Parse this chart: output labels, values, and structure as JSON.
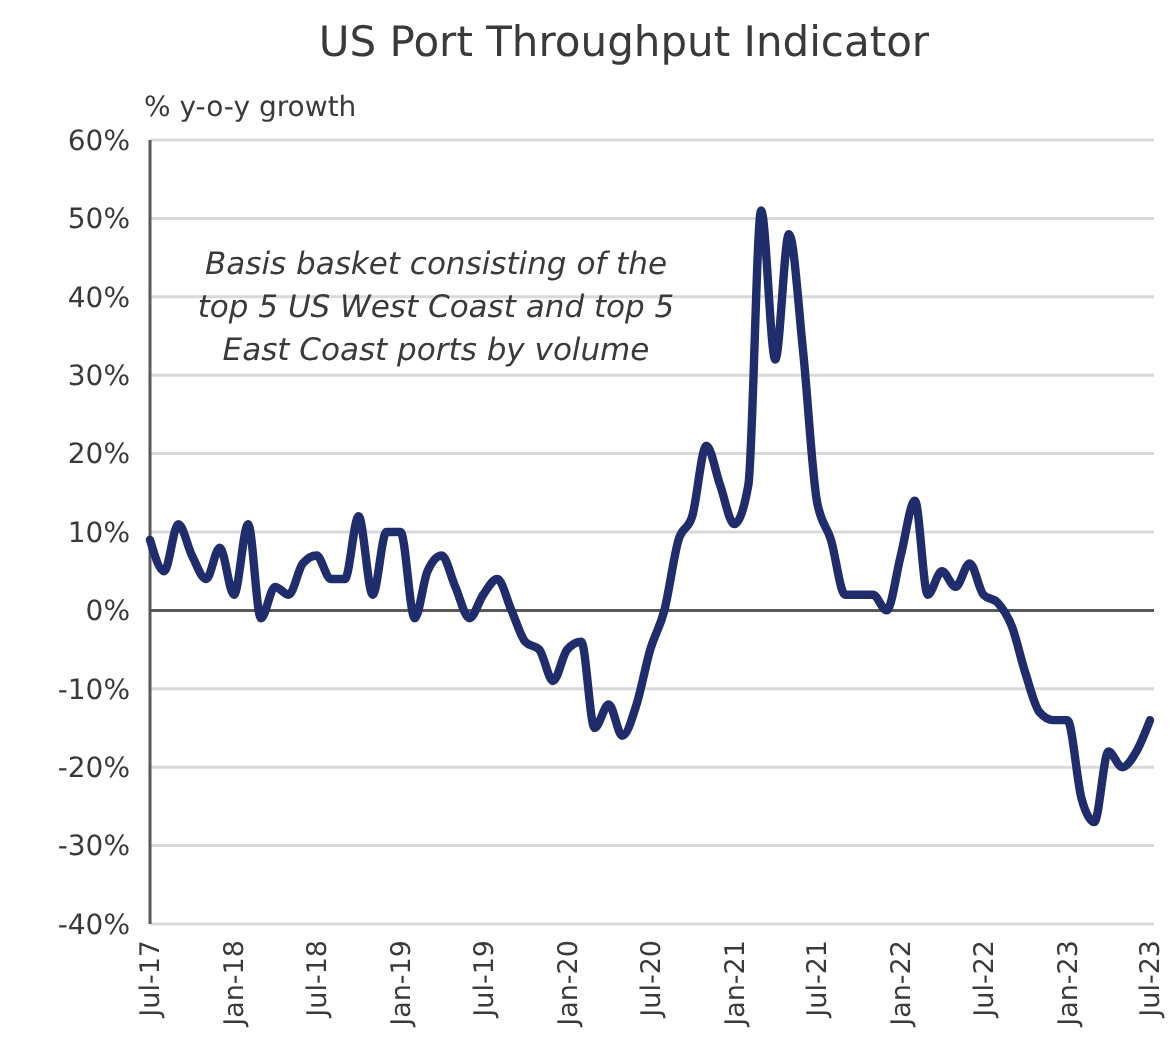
{
  "chart_data": {
    "type": "line",
    "title": "US Port Throughput Indicator",
    "ylabel": "% y-o-y growth",
    "annotations": [
      "Basis basket consisting of the top 5 US West Coast and top 5 East Coast ports by volume"
    ],
    "x": [
      "2017-07",
      "2017-08",
      "2017-09",
      "2017-10",
      "2017-11",
      "2017-12",
      "2018-01",
      "2018-02",
      "2018-03",
      "2018-04",
      "2018-05",
      "2018-06",
      "2018-07",
      "2018-08",
      "2018-09",
      "2018-10",
      "2018-11",
      "2018-12",
      "2019-01",
      "2019-02",
      "2019-03",
      "2019-04",
      "2019-05",
      "2019-06",
      "2019-07",
      "2019-08",
      "2019-09",
      "2019-10",
      "2019-11",
      "2019-12",
      "2020-01",
      "2020-02",
      "2020-03",
      "2020-04",
      "2020-05",
      "2020-06",
      "2020-07",
      "2020-08",
      "2020-09",
      "2020-10",
      "2020-11",
      "2020-12",
      "2021-01",
      "2021-02",
      "2021-03",
      "2021-04",
      "2021-05",
      "2021-06",
      "2021-07",
      "2021-08",
      "2021-09",
      "2021-10",
      "2021-11",
      "2021-12",
      "2022-01",
      "2022-02",
      "2022-03",
      "2022-04",
      "2022-05",
      "2022-06",
      "2022-07",
      "2022-08",
      "2022-09",
      "2022-10",
      "2022-11",
      "2022-12",
      "2023-01",
      "2023-02",
      "2023-03",
      "2023-04",
      "2023-05",
      "2023-06",
      "2023-07"
    ],
    "series": [
      {
        "color": "#1f2d6d",
        "values": [
          9,
          5,
          11,
          7,
          4,
          8,
          2,
          11,
          -1,
          3,
          2,
          6,
          7,
          4,
          4,
          12,
          2,
          10,
          10,
          -1,
          5,
          7,
          3,
          -1,
          2,
          4,
          0,
          -4,
          -5,
          -9,
          -5,
          -4,
          -15,
          -12,
          -16,
          -12,
          -5,
          0,
          9,
          12,
          21,
          16,
          11,
          16,
          51,
          32,
          48,
          33,
          14,
          9,
          2,
          2,
          2,
          0,
          7,
          14,
          2,
          5,
          3,
          6,
          2,
          1,
          -2,
          -8,
          -13,
          -14,
          -14,
          -24,
          -27,
          -18,
          -20,
          -18,
          -14
        ]
      }
    ],
    "xlim": [
      "2017-07",
      "2023-07"
    ],
    "xticks": [
      {
        "value": "2017-07",
        "label": "Jul-17"
      },
      {
        "value": "2018-01",
        "label": "Jan-18"
      },
      {
        "value": "2018-07",
        "label": "Jul-18"
      },
      {
        "value": "2019-01",
        "label": "Jan-19"
      },
      {
        "value": "2019-07",
        "label": "Jul-19"
      },
      {
        "value": "2020-01",
        "label": "Jan-20"
      },
      {
        "value": "2020-07",
        "label": "Jul-20"
      },
      {
        "value": "2021-01",
        "label": "Jan-21"
      },
      {
        "value": "2021-07",
        "label": "Jul-21"
      },
      {
        "value": "2022-01",
        "label": "Jan-22"
      },
      {
        "value": "2022-07",
        "label": "Jul-22"
      },
      {
        "value": "2023-01",
        "label": "Jan-23"
      },
      {
        "value": "2023-07",
        "label": "Jul-23"
      }
    ],
    "ylim": [
      -40,
      60
    ],
    "yticks": [
      {
        "value": -40,
        "label": "-40%"
      },
      {
        "value": -30,
        "label": "-30%"
      },
      {
        "value": -20,
        "label": "-20%"
      },
      {
        "value": -10,
        "label": "-10%"
      },
      {
        "value": 0,
        "label": "0%"
      },
      {
        "value": 10,
        "label": "10%"
      },
      {
        "value": 20,
        "label": "20%"
      },
      {
        "value": 30,
        "label": "30%"
      },
      {
        "value": 40,
        "label": "40%"
      },
      {
        "value": 50,
        "label": "50%"
      },
      {
        "value": 60,
        "label": "60%"
      }
    ],
    "grid": "y"
  }
}
